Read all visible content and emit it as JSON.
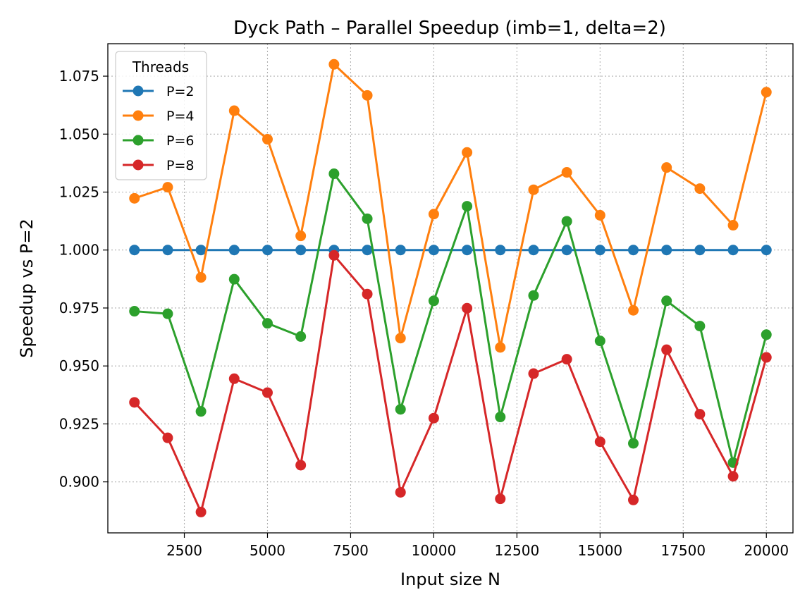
{
  "chart_data": {
    "type": "line",
    "title": "Dyck Path – Parallel Speedup (imb=1, delta=2)",
    "xlabel": "Input size N",
    "ylabel": "Speedup vs P=2",
    "xlim": [
      200,
      20800
    ],
    "ylim": [
      0.878,
      1.089
    ],
    "xticks": [
      2500,
      5000,
      7500,
      10000,
      12500,
      15000,
      17500,
      20000
    ],
    "xtick_labels": [
      "2500",
      "5000",
      "7500",
      "10000",
      "12500",
      "15000",
      "17500",
      "20000"
    ],
    "yticks": [
      0.9,
      0.925,
      0.95,
      0.975,
      1.0,
      1.025,
      1.05,
      1.075
    ],
    "ytick_labels": [
      "0.900",
      "0.925",
      "0.950",
      "0.975",
      "1.000",
      "1.025",
      "1.050",
      "1.075"
    ],
    "grid": true,
    "legend": {
      "title": "Threads",
      "position": "top-left"
    },
    "x": [
      1000,
      2000,
      3000,
      4000,
      5000,
      6000,
      7000,
      8000,
      9000,
      10000,
      11000,
      12000,
      13000,
      14000,
      15000,
      16000,
      17000,
      18000,
      19000,
      20000
    ],
    "series": [
      {
        "name": "P=2",
        "color": "#1f77b4",
        "values": [
          1.0,
          1.0,
          1.0,
          1.0,
          1.0,
          1.0,
          1.0,
          1.0,
          1.0,
          1.0,
          1.0,
          1.0,
          1.0,
          1.0,
          1.0,
          1.0,
          1.0,
          1.0,
          1.0,
          1.0
        ]
      },
      {
        "name": "P=4",
        "color": "#ff7f0e",
        "values": [
          1.0223,
          1.0271,
          0.9882,
          1.0601,
          1.0478,
          1.0061,
          1.0801,
          1.0667,
          0.962,
          1.0155,
          1.0421,
          0.958,
          1.026,
          1.0335,
          1.015,
          0.974,
          1.0356,
          1.0265,
          1.0107,
          1.0681
        ]
      },
      {
        "name": "P=6",
        "color": "#2ca02c",
        "values": [
          0.9736,
          0.9725,
          0.9304,
          0.9874,
          0.9684,
          0.9627,
          1.0329,
          1.0135,
          0.9313,
          0.9781,
          1.0189,
          0.928,
          0.9804,
          1.0124,
          0.9608,
          0.9166,
          0.9781,
          0.9672,
          0.9083,
          0.9635
        ]
      },
      {
        "name": "P=8",
        "color": "#d62728",
        "values": [
          0.9343,
          0.919,
          0.887,
          0.9445,
          0.9385,
          0.9072,
          0.9977,
          0.981,
          0.8955,
          0.9275,
          0.9749,
          0.8927,
          0.9467,
          0.9529,
          0.9173,
          0.8922,
          0.957,
          0.9292,
          0.9024,
          0.9537
        ]
      }
    ]
  }
}
